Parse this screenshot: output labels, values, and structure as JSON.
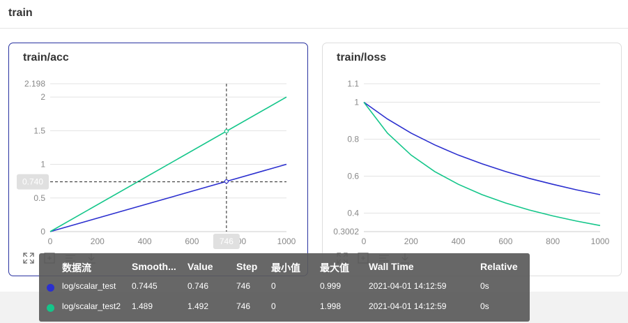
{
  "page": {
    "title": "train"
  },
  "colors": {
    "series1": "#2b2fcf",
    "series2": "#14c68a",
    "active_border": "#2932a0"
  },
  "charts": [
    {
      "id": "acc",
      "title": "train/acc",
      "x_ticks": [
        "0",
        "200",
        "400",
        "600",
        "800",
        "1000"
      ],
      "y_ticks": [
        "0",
        "0.5",
        "1",
        "1.5",
        "2"
      ],
      "y_max_label": "2.198",
      "cursor_x_label": "746",
      "cursor_y_label": "0.740"
    },
    {
      "id": "loss",
      "title": "train/loss",
      "x_ticks": [
        "0",
        "200",
        "400",
        "600",
        "800",
        "1000"
      ],
      "y_ticks": [
        "0.4",
        "0.6",
        "0.8",
        "1"
      ],
      "y_max_label": "1.1",
      "y_min_label": "0.3002"
    }
  ],
  "chart_data": [
    {
      "type": "line",
      "title": "train/acc",
      "xlim": [
        0,
        1000
      ],
      "ylim": [
        0,
        2.198
      ],
      "series": [
        {
          "name": "log/scalar_test",
          "x": [
            0,
            1000
          ],
          "y": [
            0,
            1.0
          ]
        },
        {
          "name": "log/scalar_test2",
          "x": [
            0,
            1000
          ],
          "y": [
            0,
            2.0
          ]
        }
      ],
      "cursor": {
        "x": 746,
        "y": 0.74
      }
    },
    {
      "type": "line",
      "title": "train/loss",
      "xlim": [
        0,
        1000
      ],
      "ylim": [
        0.3002,
        1.1
      ],
      "series": [
        {
          "name": "log/scalar_test",
          "x": [
            0,
            100,
            200,
            300,
            400,
            500,
            600,
            700,
            800,
            900,
            1000
          ],
          "y": [
            1.0,
            0.909,
            0.833,
            0.769,
            0.714,
            0.667,
            0.625,
            0.588,
            0.556,
            0.526,
            0.5
          ]
        },
        {
          "name": "log/scalar_test2",
          "x": [
            0,
            100,
            200,
            300,
            400,
            500,
            600,
            700,
            800,
            900,
            1000
          ],
          "y": [
            1.0,
            0.833,
            0.714,
            0.625,
            0.556,
            0.5,
            0.455,
            0.417,
            0.385,
            0.357,
            0.333
          ]
        }
      ]
    }
  ],
  "tooltip": {
    "headers": [
      "数据流",
      "Smooth...",
      "Value",
      "Step",
      "最小值",
      "最大值",
      "Wall Time",
      "Relative"
    ],
    "rows": [
      [
        "log/scalar_test",
        "0.7445",
        "0.746",
        "746",
        "0",
        "0.999",
        "2021-04-01 14:12:59",
        "0s"
      ],
      [
        "log/scalar_test2",
        "1.489",
        "1.492",
        "746",
        "0",
        "1.998",
        "2021-04-01 14:12:59",
        "0s"
      ]
    ]
  }
}
